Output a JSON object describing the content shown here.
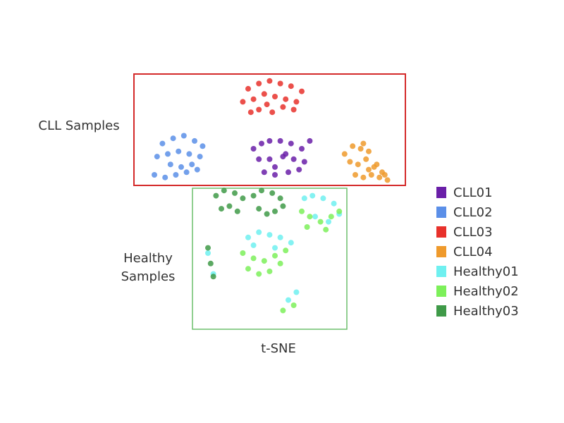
{
  "chart_data": {
    "type": "scatter",
    "xlabel": "t-SNE",
    "annotations": [
      "CLL Samples",
      "Healthy Samples"
    ],
    "xlim": [
      0,
      100
    ],
    "ylim": [
      0,
      100
    ],
    "series": [
      {
        "name": "CLL01",
        "color": "#6a1fa8",
        "x": [
          42,
          45,
          48,
          52,
          56,
          60,
          44,
          48,
          53,
          57,
          61,
          46,
          50,
          55,
          59,
          63,
          50,
          54
        ],
        "values": [
          70,
          72,
          73,
          73,
          72,
          70,
          66,
          66,
          67,
          66,
          65,
          61,
          60,
          61,
          62,
          73,
          63,
          68
        ]
      },
      {
        "name": "CLL02",
        "color": "#5b8fe8",
        "x": [
          8,
          12,
          16,
          20,
          23,
          6,
          10,
          14,
          18,
          22,
          5,
          9,
          13,
          17,
          21,
          11,
          15,
          19
        ],
        "values": [
          72,
          74,
          75,
          73,
          71,
          67,
          68,
          69,
          68,
          67,
          60,
          59,
          60,
          61,
          62,
          64,
          63,
          64
        ]
      },
      {
        "name": "CLL03",
        "color": "#e8312b",
        "x": [
          40,
          44,
          48,
          52,
          56,
          60,
          38,
          42,
          46,
          50,
          54,
          58,
          44,
          49,
          53,
          47,
          41,
          57
        ],
        "values": [
          93,
          95,
          96,
          95,
          94,
          92,
          88,
          89,
          91,
          90,
          89,
          88,
          85,
          84,
          86,
          87,
          84,
          85
        ]
      },
      {
        "name": "CLL04",
        "color": "#ef9a2c",
        "x": [
          76,
          79,
          82,
          85,
          88,
          91,
          78,
          81,
          84,
          87,
          90,
          80,
          83,
          86,
          89,
          92,
          83,
          85
        ],
        "values": [
          68,
          71,
          70,
          69,
          64,
          60,
          65,
          64,
          66,
          63,
          61,
          60,
          59,
          60,
          59,
          58,
          72,
          62
        ]
      },
      {
        "name": "Healthy01",
        "color": "#6ff0f0",
        "x": [
          61,
          64,
          68,
          72,
          74,
          65,
          70,
          40,
          44,
          48,
          52,
          56,
          42,
          50,
          25,
          27,
          55,
          58
        ],
        "values": [
          51,
          52,
          51,
          49,
          45,
          44,
          42,
          36,
          38,
          37,
          36,
          34,
          33,
          32,
          30,
          22,
          12,
          15
        ]
      },
      {
        "name": "Healthy02",
        "color": "#7df05a",
        "x": [
          60,
          63,
          67,
          71,
          74,
          62,
          69,
          38,
          42,
          46,
          50,
          54,
          40,
          44,
          48,
          52,
          53,
          57
        ],
        "values": [
          46,
          44,
          42,
          44,
          46,
          40,
          39,
          30,
          28,
          27,
          29,
          31,
          24,
          22,
          23,
          26,
          8,
          10
        ]
      },
      {
        "name": "Healthy03",
        "color": "#3f9a48",
        "x": [
          28,
          31,
          35,
          38,
          30,
          33,
          36,
          42,
          45,
          49,
          52,
          44,
          47,
          50,
          53,
          25,
          26,
          27
        ],
        "values": [
          52,
          54,
          53,
          51,
          47,
          48,
          46,
          52,
          54,
          53,
          51,
          47,
          45,
          46,
          48,
          32,
          26,
          21
        ]
      }
    ]
  }
}
